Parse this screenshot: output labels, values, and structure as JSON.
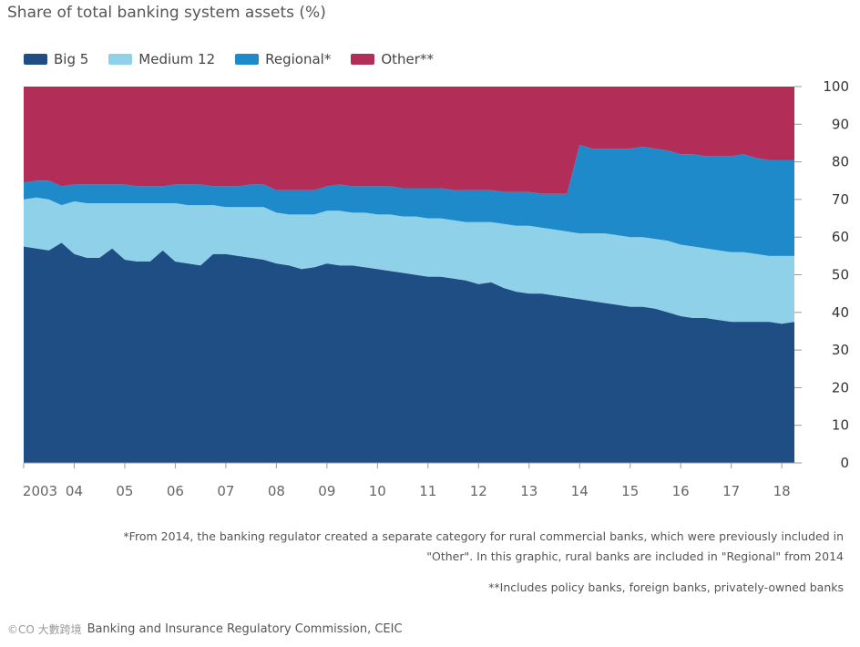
{
  "title": "Share of total banking system assets (%)",
  "colors": {
    "big5": "#1f4e85",
    "medium12": "#8fd1e8",
    "regional": "#1f8ac9",
    "other": "#b22d58",
    "axis": "#999999"
  },
  "legend": [
    {
      "label": "Big 5",
      "color": "#1f4e85"
    },
    {
      "label": "Medium 12",
      "color": "#8fd1e8"
    },
    {
      "label": "Regional*",
      "color": "#1f8ac9"
    },
    {
      "label": "Other**",
      "color": "#b22d58"
    }
  ],
  "chart_data": {
    "type": "area",
    "stacked": true,
    "title": "Share of total banking system assets (%)",
    "ylim": [
      0,
      100
    ],
    "yticks": [
      0,
      10,
      20,
      30,
      40,
      50,
      60,
      70,
      80,
      90,
      100
    ],
    "xlim": [
      2003.0,
      2018.25
    ],
    "xticks": [
      {
        "label": "2003",
        "x": 2003.0
      },
      {
        "label": "04",
        "x": 2004.0
      },
      {
        "label": "05",
        "x": 2005.0
      },
      {
        "label": "06",
        "x": 2006.0
      },
      {
        "label": "07",
        "x": 2007.0
      },
      {
        "label": "08",
        "x": 2008.0
      },
      {
        "label": "09",
        "x": 2009.0
      },
      {
        "label": "10",
        "x": 2010.0
      },
      {
        "label": "11",
        "x": 2011.0
      },
      {
        "label": "12",
        "x": 2012.0
      },
      {
        "label": "13",
        "x": 2013.0
      },
      {
        "label": "14",
        "x": 2014.0
      },
      {
        "label": "15",
        "x": 2015.0
      },
      {
        "label": "16",
        "x": 2016.0
      },
      {
        "label": "17",
        "x": 2017.0
      },
      {
        "label": "18",
        "x": 2018.0
      }
    ],
    "x": [
      2003.0,
      2003.25,
      2003.5,
      2003.75,
      2004.0,
      2004.25,
      2004.5,
      2004.75,
      2005.0,
      2005.25,
      2005.5,
      2005.75,
      2006.0,
      2006.25,
      2006.5,
      2006.75,
      2007.0,
      2007.25,
      2007.5,
      2007.75,
      2008.0,
      2008.25,
      2008.5,
      2008.75,
      2009.0,
      2009.25,
      2009.5,
      2009.75,
      2010.0,
      2010.25,
      2010.5,
      2010.75,
      2011.0,
      2011.25,
      2011.5,
      2011.75,
      2012.0,
      2012.25,
      2012.5,
      2012.75,
      2013.0,
      2013.25,
      2013.5,
      2013.75,
      2014.0,
      2014.25,
      2014.5,
      2014.75,
      2015.0,
      2015.25,
      2015.5,
      2015.75,
      2016.0,
      2016.25,
      2016.5,
      2016.75,
      2017.0,
      2017.25,
      2017.5,
      2017.75,
      2018.0,
      2018.25
    ],
    "series": [
      {
        "name": "Big 5",
        "values": [
          57.5,
          57,
          56.5,
          58.5,
          55.5,
          54.5,
          54.5,
          57,
          54,
          53.5,
          53.5,
          56.5,
          53.5,
          53,
          52.5,
          55.5,
          55.5,
          55,
          54.5,
          54,
          53,
          52.5,
          51.5,
          52,
          53,
          52.5,
          52.5,
          52,
          51.5,
          51,
          50.5,
          50,
          49.5,
          49.5,
          49,
          48.5,
          47.5,
          48,
          46.5,
          45.5,
          45,
          45,
          44.5,
          44,
          43.5,
          43,
          42.5,
          42,
          41.5,
          41.5,
          41,
          40,
          39,
          38.5,
          38.5,
          38,
          37.5,
          37.5,
          37.5,
          37.5,
          37,
          37.5
        ]
      },
      {
        "name": "Medium 12",
        "values": [
          12.5,
          13.5,
          13.5,
          10,
          14,
          14.5,
          14.5,
          12,
          15,
          15.5,
          15.5,
          12.5,
          15.5,
          15.5,
          16,
          13,
          12.5,
          13,
          13.5,
          14,
          13.5,
          13.5,
          14.5,
          14,
          14,
          14.5,
          14,
          14.5,
          14.5,
          15,
          15,
          15.5,
          15.5,
          15.5,
          15.5,
          15.5,
          16.5,
          16,
          17,
          17.5,
          18,
          17.5,
          17.5,
          17.5,
          17.5,
          18,
          18.5,
          18.5,
          18.5,
          18.5,
          18.5,
          19,
          19,
          19,
          18.5,
          18.5,
          18.5,
          18.5,
          18,
          17.5,
          18,
          17.5
        ]
      },
      {
        "name": "Regional*",
        "values": [
          4.5,
          4.5,
          5,
          5,
          4.5,
          5,
          5,
          5,
          5,
          4.5,
          4.5,
          4.5,
          5,
          5.5,
          5.5,
          5,
          5.5,
          5.5,
          6,
          6,
          6,
          6.5,
          6.5,
          6.5,
          6.5,
          7,
          7,
          7,
          7.5,
          7.5,
          7.5,
          7.5,
          8,
          8,
          8,
          8.5,
          8.5,
          8.5,
          8.5,
          9,
          9,
          9,
          9.5,
          10,
          23.5,
          22.5,
          22.5,
          23,
          23.5,
          24,
          24,
          24,
          24,
          24.5,
          24.5,
          25,
          25.5,
          26,
          25.5,
          25.5,
          25.5,
          25.5
        ]
      },
      {
        "name": "Other**",
        "values": [
          25.5,
          25,
          25,
          26.5,
          26,
          26,
          26,
          26,
          26,
          26.5,
          26.5,
          26.5,
          26,
          26,
          26,
          26.5,
          26.5,
          26.5,
          26,
          26,
          27.5,
          27.5,
          27.5,
          27.5,
          26.5,
          26,
          26.5,
          26.5,
          26.5,
          26.5,
          27,
          27,
          27,
          27,
          27.5,
          27.5,
          27.5,
          27.5,
          28,
          28,
          28,
          28.5,
          28.5,
          28.5,
          15.5,
          16.5,
          16.5,
          16.5,
          16.5,
          16,
          16.5,
          17,
          18,
          18,
          18.5,
          18.5,
          18.5,
          18,
          19,
          19.5,
          19.5,
          19.5
        ]
      }
    ]
  },
  "notes": {
    "note_regional": "*From 2014, the banking regulator created a separate category for rural commercial banks, which were previously included in \"Other\". In this graphic, rural banks are included in \"Regional\" from 2014",
    "note_other": "**Includes policy banks, foreign banks, privately-owned banks"
  },
  "source": {
    "watermark": "©CO 大數跨境",
    "text": "Banking and Insurance Regulatory Commission, CEIC"
  }
}
